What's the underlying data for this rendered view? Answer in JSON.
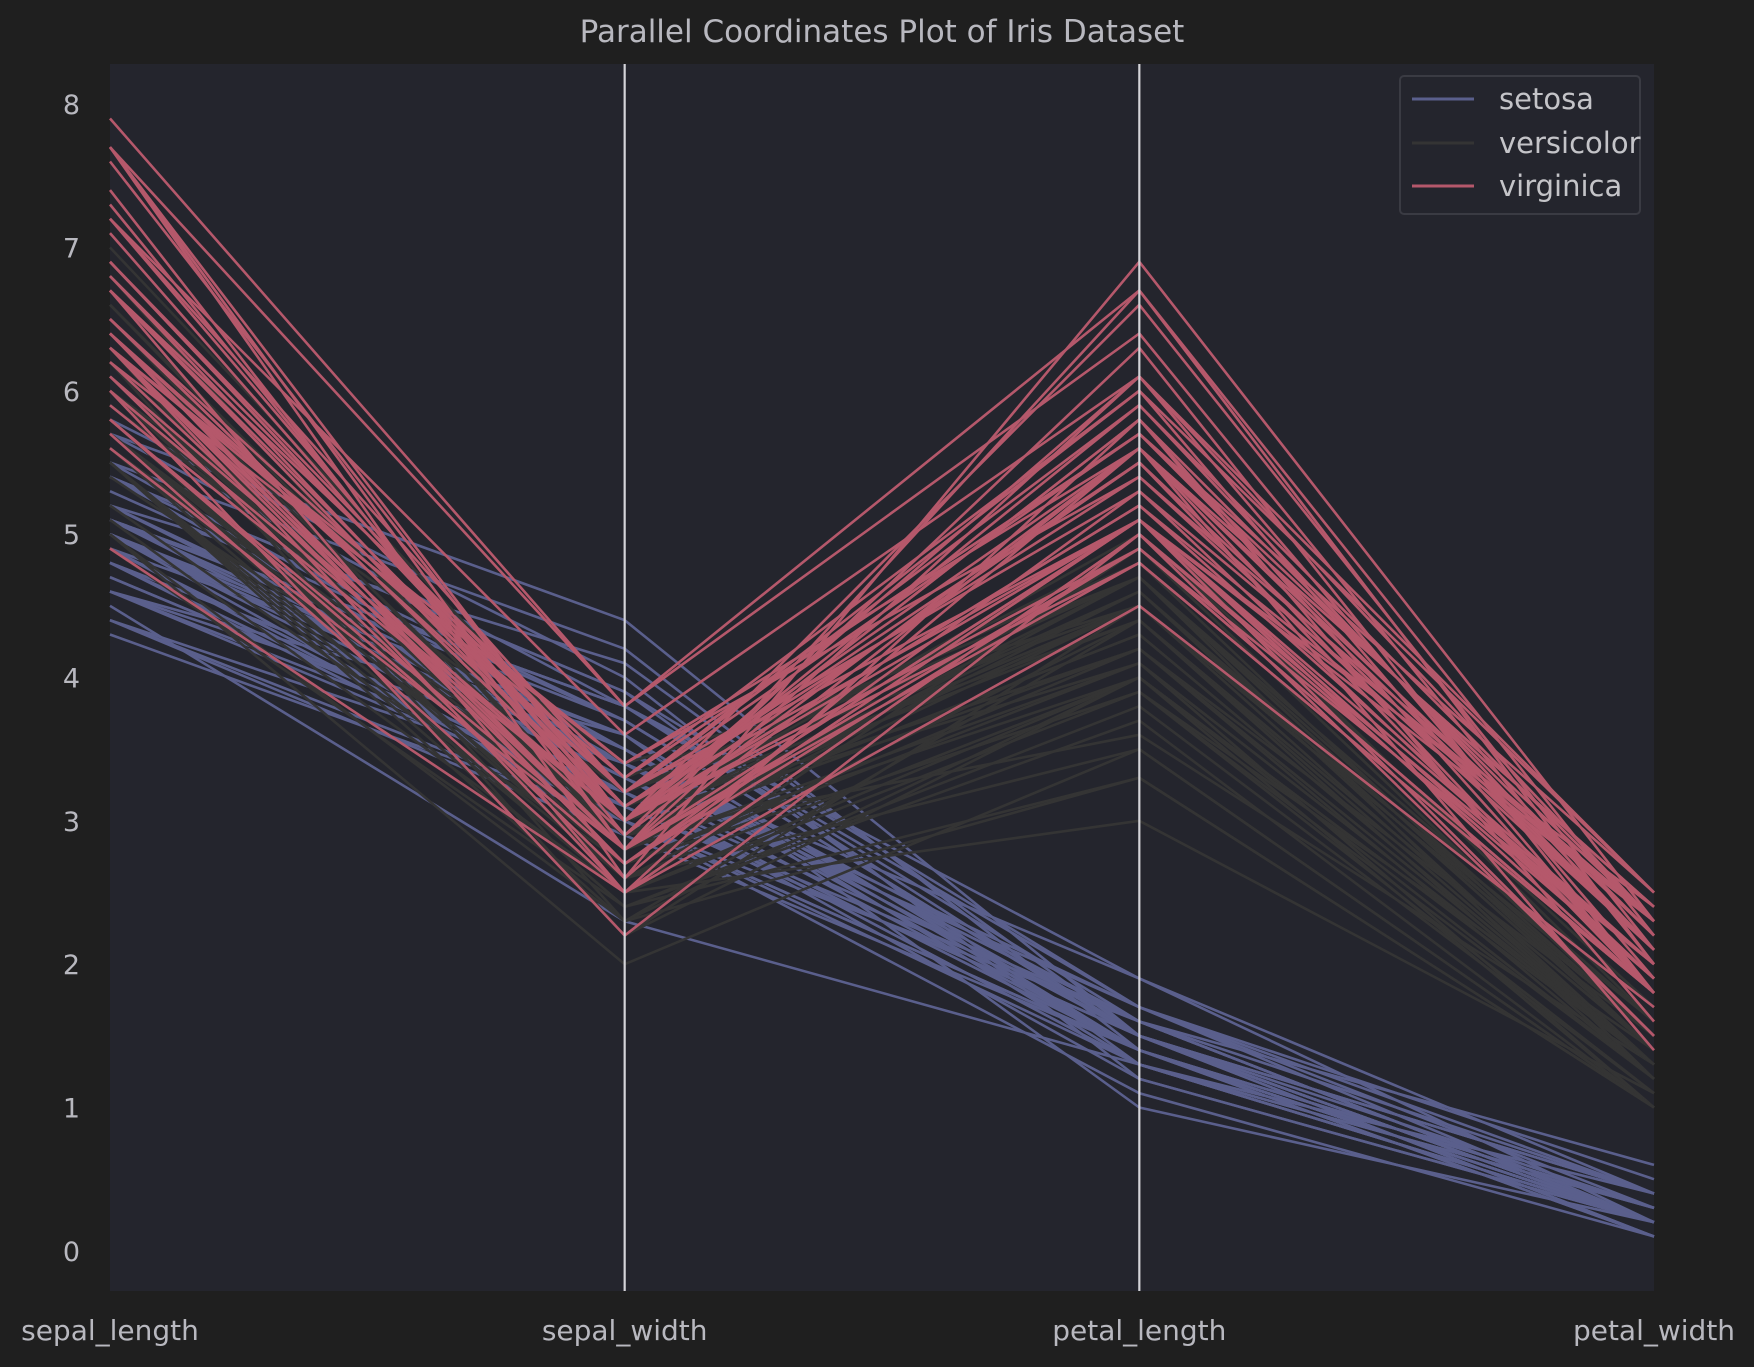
{
  "chart_data": {
    "type": "parallel_coordinates",
    "title": "Parallel Coordinates Plot of Iris Dataset",
    "axes": [
      "sepal_length",
      "sepal_width",
      "petal_length",
      "petal_width"
    ],
    "yticks": [
      0,
      1,
      2,
      3,
      4,
      5,
      6,
      7,
      8
    ],
    "ylim": [
      -0.28,
      8.28
    ],
    "grid": true,
    "legend_position": "top-right",
    "series": [
      {
        "name": "setosa",
        "color": "#5a5f8c",
        "values": [
          [
            5.1,
            3.5,
            1.4,
            0.2
          ],
          [
            4.9,
            3.0,
            1.4,
            0.2
          ],
          [
            4.7,
            3.2,
            1.3,
            0.2
          ],
          [
            4.6,
            3.1,
            1.5,
            0.2
          ],
          [
            5.0,
            3.6,
            1.4,
            0.2
          ],
          [
            5.4,
            3.9,
            1.7,
            0.4
          ],
          [
            4.6,
            3.4,
            1.4,
            0.3
          ],
          [
            5.0,
            3.4,
            1.5,
            0.2
          ],
          [
            4.4,
            2.9,
            1.4,
            0.2
          ],
          [
            4.9,
            3.1,
            1.5,
            0.1
          ],
          [
            5.4,
            3.7,
            1.5,
            0.2
          ],
          [
            4.8,
            3.4,
            1.6,
            0.2
          ],
          [
            4.8,
            3.0,
            1.4,
            0.1
          ],
          [
            4.3,
            3.0,
            1.1,
            0.1
          ],
          [
            5.8,
            4.0,
            1.2,
            0.2
          ],
          [
            5.7,
            4.4,
            1.5,
            0.4
          ],
          [
            5.4,
            3.9,
            1.3,
            0.4
          ],
          [
            5.1,
            3.5,
            1.4,
            0.3
          ],
          [
            5.7,
            3.8,
            1.7,
            0.3
          ],
          [
            5.1,
            3.8,
            1.5,
            0.3
          ],
          [
            5.4,
            3.4,
            1.7,
            0.2
          ],
          [
            5.1,
            3.7,
            1.5,
            0.4
          ],
          [
            4.6,
            3.6,
            1.0,
            0.2
          ],
          [
            5.1,
            3.3,
            1.7,
            0.5
          ],
          [
            4.8,
            3.4,
            1.9,
            0.2
          ],
          [
            5.0,
            3.0,
            1.6,
            0.2
          ],
          [
            5.0,
            3.4,
            1.6,
            0.4
          ],
          [
            5.2,
            3.5,
            1.5,
            0.2
          ],
          [
            5.2,
            3.4,
            1.4,
            0.2
          ],
          [
            4.7,
            3.2,
            1.6,
            0.2
          ],
          [
            4.8,
            3.1,
            1.6,
            0.2
          ],
          [
            5.4,
            3.4,
            1.5,
            0.4
          ],
          [
            5.2,
            4.1,
            1.5,
            0.1
          ],
          [
            5.5,
            4.2,
            1.4,
            0.2
          ],
          [
            4.9,
            3.1,
            1.5,
            0.2
          ],
          [
            5.0,
            3.2,
            1.2,
            0.2
          ],
          [
            5.5,
            3.5,
            1.3,
            0.2
          ],
          [
            4.9,
            3.6,
            1.4,
            0.1
          ],
          [
            4.4,
            3.0,
            1.3,
            0.2
          ],
          [
            5.1,
            3.4,
            1.5,
            0.2
          ],
          [
            5.0,
            3.5,
            1.3,
            0.3
          ],
          [
            4.5,
            2.3,
            1.3,
            0.3
          ],
          [
            4.4,
            3.2,
            1.3,
            0.2
          ],
          [
            5.0,
            3.5,
            1.6,
            0.6
          ],
          [
            5.1,
            3.8,
            1.9,
            0.4
          ],
          [
            4.8,
            3.0,
            1.4,
            0.3
          ],
          [
            5.1,
            3.8,
            1.6,
            0.2
          ],
          [
            4.6,
            3.2,
            1.4,
            0.2
          ],
          [
            5.3,
            3.7,
            1.5,
            0.2
          ],
          [
            5.0,
            3.3,
            1.4,
            0.2
          ]
        ]
      },
      {
        "name": "versicolor",
        "color": "#343434",
        "values": [
          [
            7.0,
            3.2,
            4.7,
            1.4
          ],
          [
            6.4,
            3.2,
            4.5,
            1.5
          ],
          [
            6.9,
            3.1,
            4.9,
            1.5
          ],
          [
            5.5,
            2.3,
            4.0,
            1.3
          ],
          [
            6.5,
            2.8,
            4.6,
            1.5
          ],
          [
            5.7,
            2.8,
            4.5,
            1.3
          ],
          [
            6.3,
            3.3,
            4.7,
            1.6
          ],
          [
            4.9,
            2.4,
            3.3,
            1.0
          ],
          [
            6.6,
            2.9,
            4.6,
            1.3
          ],
          [
            5.2,
            2.7,
            3.9,
            1.4
          ],
          [
            5.0,
            2.0,
            3.5,
            1.0
          ],
          [
            5.9,
            3.0,
            4.2,
            1.5
          ],
          [
            6.0,
            2.2,
            4.0,
            1.0
          ],
          [
            6.1,
            2.9,
            4.7,
            1.4
          ],
          [
            5.6,
            2.9,
            3.6,
            1.3
          ],
          [
            6.7,
            3.1,
            4.4,
            1.4
          ],
          [
            5.6,
            3.0,
            4.5,
            1.5
          ],
          [
            5.8,
            2.7,
            4.1,
            1.0
          ],
          [
            6.2,
            2.2,
            4.5,
            1.5
          ],
          [
            5.6,
            2.5,
            3.9,
            1.1
          ],
          [
            5.9,
            3.2,
            4.8,
            1.8
          ],
          [
            6.1,
            2.8,
            4.0,
            1.3
          ],
          [
            6.3,
            2.5,
            4.9,
            1.5
          ],
          [
            6.1,
            2.8,
            4.7,
            1.2
          ],
          [
            6.4,
            2.9,
            4.3,
            1.3
          ],
          [
            6.6,
            3.0,
            4.4,
            1.4
          ],
          [
            6.8,
            2.8,
            4.8,
            1.4
          ],
          [
            6.7,
            3.0,
            5.0,
            1.7
          ],
          [
            6.0,
            2.9,
            4.5,
            1.5
          ],
          [
            5.7,
            2.6,
            3.5,
            1.0
          ],
          [
            5.5,
            2.4,
            3.8,
            1.1
          ],
          [
            5.5,
            2.4,
            3.7,
            1.0
          ],
          [
            5.8,
            2.7,
            3.9,
            1.2
          ],
          [
            6.0,
            2.7,
            5.1,
            1.6
          ],
          [
            5.4,
            3.0,
            4.5,
            1.5
          ],
          [
            6.0,
            3.4,
            4.5,
            1.6
          ],
          [
            6.7,
            3.1,
            4.7,
            1.5
          ],
          [
            6.3,
            2.3,
            4.4,
            1.3
          ],
          [
            5.6,
            3.0,
            4.1,
            1.3
          ],
          [
            5.5,
            2.5,
            4.0,
            1.3
          ],
          [
            5.5,
            2.6,
            4.4,
            1.2
          ],
          [
            6.1,
            3.0,
            4.6,
            1.4
          ],
          [
            5.8,
            2.6,
            4.0,
            1.2
          ],
          [
            5.0,
            2.3,
            3.3,
            1.0
          ],
          [
            5.6,
            2.7,
            4.2,
            1.3
          ],
          [
            5.7,
            3.0,
            4.2,
            1.2
          ],
          [
            5.7,
            2.9,
            4.2,
            1.3
          ],
          [
            6.2,
            2.9,
            4.3,
            1.3
          ],
          [
            5.1,
            2.5,
            3.0,
            1.1
          ],
          [
            5.7,
            2.8,
            4.1,
            1.3
          ]
        ]
      },
      {
        "name": "virginica",
        "color": "#b5586b",
        "values": [
          [
            6.3,
            3.3,
            6.0,
            2.5
          ],
          [
            5.8,
            2.7,
            5.1,
            1.9
          ],
          [
            7.1,
            3.0,
            5.9,
            2.1
          ],
          [
            6.3,
            2.9,
            5.6,
            1.8
          ],
          [
            6.5,
            3.0,
            5.8,
            2.2
          ],
          [
            7.6,
            3.0,
            6.6,
            2.1
          ],
          [
            4.9,
            2.5,
            4.5,
            1.7
          ],
          [
            7.3,
            2.9,
            6.3,
            1.8
          ],
          [
            6.7,
            2.5,
            5.8,
            1.8
          ],
          [
            7.2,
            3.6,
            6.1,
            2.5
          ],
          [
            6.5,
            3.2,
            5.1,
            2.0
          ],
          [
            6.4,
            2.7,
            5.3,
            1.9
          ],
          [
            6.8,
            3.0,
            5.5,
            2.1
          ],
          [
            5.7,
            2.5,
            5.0,
            2.0
          ],
          [
            5.8,
            2.8,
            5.1,
            2.4
          ],
          [
            6.4,
            3.2,
            5.3,
            2.3
          ],
          [
            6.5,
            3.0,
            5.5,
            1.8
          ],
          [
            7.7,
            3.8,
            6.7,
            2.2
          ],
          [
            7.7,
            2.6,
            6.9,
            2.3
          ],
          [
            6.0,
            2.2,
            5.0,
            1.5
          ],
          [
            6.9,
            3.2,
            5.7,
            2.3
          ],
          [
            5.6,
            2.8,
            4.9,
            2.0
          ],
          [
            7.7,
            2.8,
            6.7,
            2.0
          ],
          [
            6.3,
            2.7,
            4.9,
            1.8
          ],
          [
            6.7,
            3.3,
            5.7,
            2.1
          ],
          [
            7.2,
            3.2,
            6.0,
            1.8
          ],
          [
            6.2,
            2.8,
            4.8,
            1.8
          ],
          [
            6.1,
            3.0,
            4.9,
            1.8
          ],
          [
            6.4,
            2.8,
            5.6,
            2.1
          ],
          [
            7.2,
            3.0,
            5.8,
            1.6
          ],
          [
            7.4,
            2.8,
            6.1,
            1.9
          ],
          [
            7.9,
            3.8,
            6.4,
            2.0
          ],
          [
            6.4,
            2.8,
            5.6,
            2.2
          ],
          [
            6.3,
            2.8,
            5.1,
            1.5
          ],
          [
            6.1,
            2.6,
            5.6,
            1.4
          ],
          [
            7.7,
            3.0,
            6.1,
            2.3
          ],
          [
            6.3,
            3.4,
            5.6,
            2.4
          ],
          [
            6.4,
            3.1,
            5.5,
            1.8
          ],
          [
            6.0,
            3.0,
            4.8,
            1.8
          ],
          [
            6.9,
            3.1,
            5.4,
            2.1
          ],
          [
            6.7,
            3.1,
            5.6,
            2.4
          ],
          [
            6.9,
            3.1,
            5.1,
            2.3
          ],
          [
            5.8,
            2.7,
            5.1,
            1.9
          ],
          [
            6.8,
            3.2,
            5.9,
            2.3
          ],
          [
            6.7,
            3.3,
            5.7,
            2.5
          ],
          [
            6.7,
            3.0,
            5.2,
            2.3
          ],
          [
            6.3,
            2.5,
            5.0,
            1.9
          ],
          [
            6.5,
            3.0,
            5.2,
            2.0
          ],
          [
            6.2,
            3.4,
            5.4,
            2.3
          ],
          [
            5.9,
            3.0,
            5.1,
            1.8
          ]
        ]
      }
    ]
  }
}
